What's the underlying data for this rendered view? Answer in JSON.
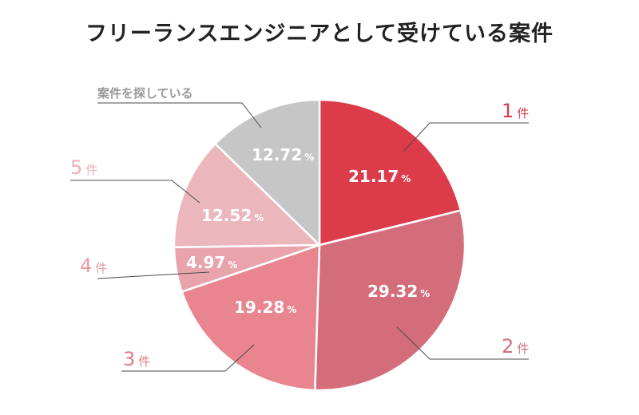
{
  "chart_data": {
    "type": "pie",
    "title": "フリーランスエンジニアとして受けている案件",
    "unit": "%",
    "slices": [
      {
        "label_num": "1",
        "label_unit": "件",
        "value": 21.17,
        "value_label": "21.17",
        "color": "#dc3b4a",
        "label_color": "#d93a4a"
      },
      {
        "label_num": "2",
        "label_unit": "件",
        "value": 29.32,
        "value_label": "29.32",
        "color": "#d46d7a",
        "label_color": "#d46d7a"
      },
      {
        "label_num": "3",
        "label_unit": "件",
        "value": 19.28,
        "value_label": "19.28",
        "color": "#e8858f",
        "label_color": "#e37a86"
      },
      {
        "label_num": "4",
        "label_unit": "件",
        "value": 4.97,
        "value_label": "4.97",
        "color": "#e9a3ab",
        "label_color": "#e89aa3"
      },
      {
        "label_num": "5",
        "label_unit": "件",
        "value": 12.52,
        "value_label": "12.52",
        "color": "#ebb7bc",
        "label_color": "#ebb0b6"
      },
      {
        "label_text": "案件を探している",
        "value": 12.72,
        "value_label": "12.72",
        "color": "#c6c6c6",
        "label_color": "#999999"
      }
    ]
  }
}
